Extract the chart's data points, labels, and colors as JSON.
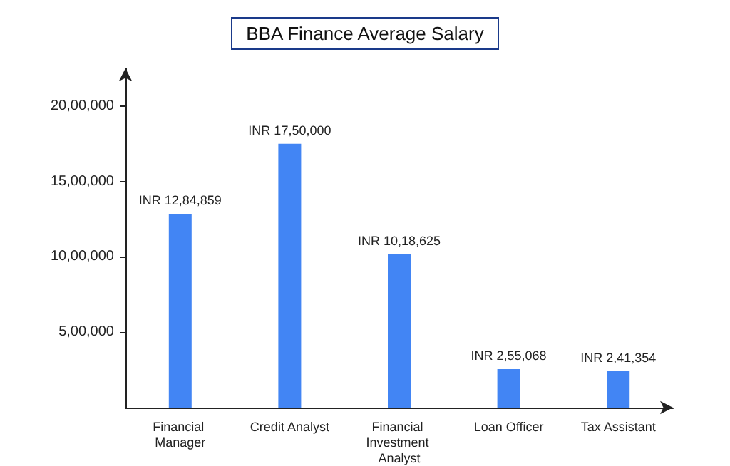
{
  "chart_data": {
    "type": "bar",
    "title": "BBA Finance Average Salary",
    "categories": [
      "Financial Manager",
      "Credit Analyst",
      "Financial Investment Analyst",
      "Loan Officer",
      "Tax Assistant"
    ],
    "values": [
      1284859,
      1750000,
      1018625,
      255068,
      241354
    ],
    "value_labels": [
      "INR 12,84,859",
      "INR 17,50,000",
      "INR 10,18,625",
      "INR 2,55,068",
      "INR 2,41,354"
    ],
    "color": "#4285f4",
    "ylim": [
      0,
      2250000
    ],
    "yticks": [
      {
        "value": 500000,
        "label": "5,00,000"
      },
      {
        "value": 1000000,
        "label": "10,00,000"
      },
      {
        "value": 1500000,
        "label": "15,00,000"
      },
      {
        "value": 2000000,
        "label": "20,00,000"
      }
    ],
    "grid": false
  }
}
